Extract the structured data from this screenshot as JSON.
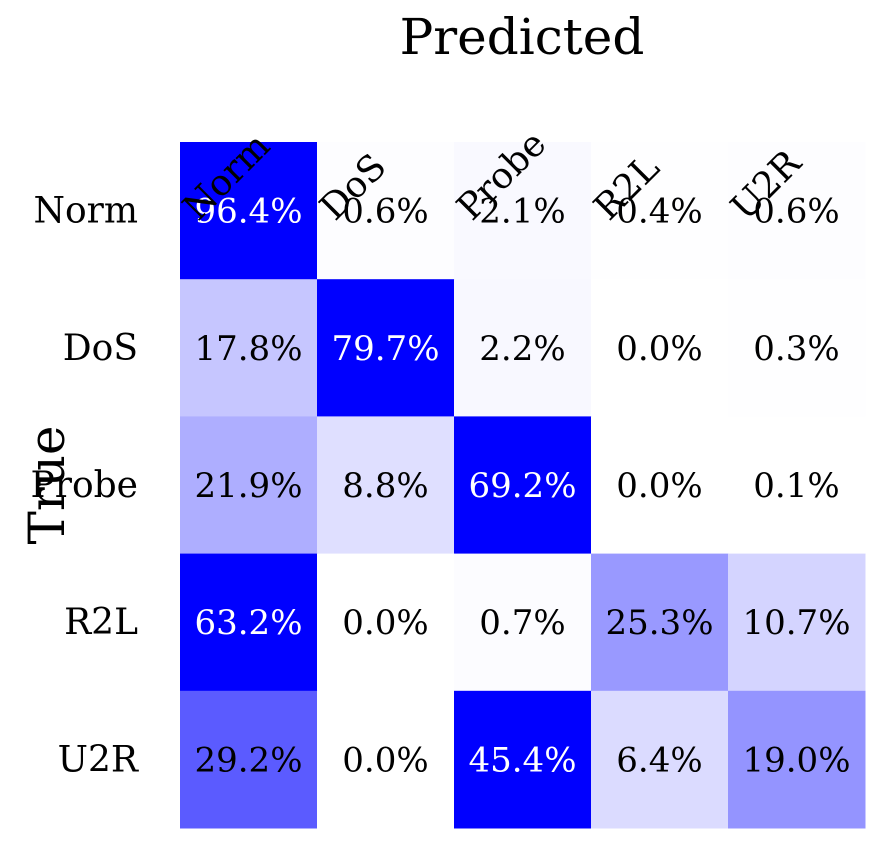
{
  "chart_data": {
    "type": "heatmap",
    "title": "Predicted",
    "xlabel": "",
    "ylabel": "True",
    "x_categories": [
      "Norm",
      "DoS",
      "Probe",
      "R2L",
      "U2R"
    ],
    "y_categories": [
      "Norm",
      "DoS",
      "Probe",
      "R2L",
      "U2R"
    ],
    "value_unit": "%",
    "values": [
      [
        96.4,
        0.6,
        2.1,
        0.4,
        0.6
      ],
      [
        17.8,
        79.7,
        2.2,
        0.0,
        0.3
      ],
      [
        21.9,
        8.8,
        69.2,
        0.0,
        0.1
      ],
      [
        63.2,
        0.0,
        0.7,
        25.3,
        10.7
      ],
      [
        29.2,
        0.0,
        45.4,
        6.4,
        19.0
      ]
    ],
    "colormap": "white-to-blue (row-normalized)",
    "color_low": "#ffffff",
    "color_high": "#0000ff",
    "grid": false,
    "legend": "none"
  }
}
